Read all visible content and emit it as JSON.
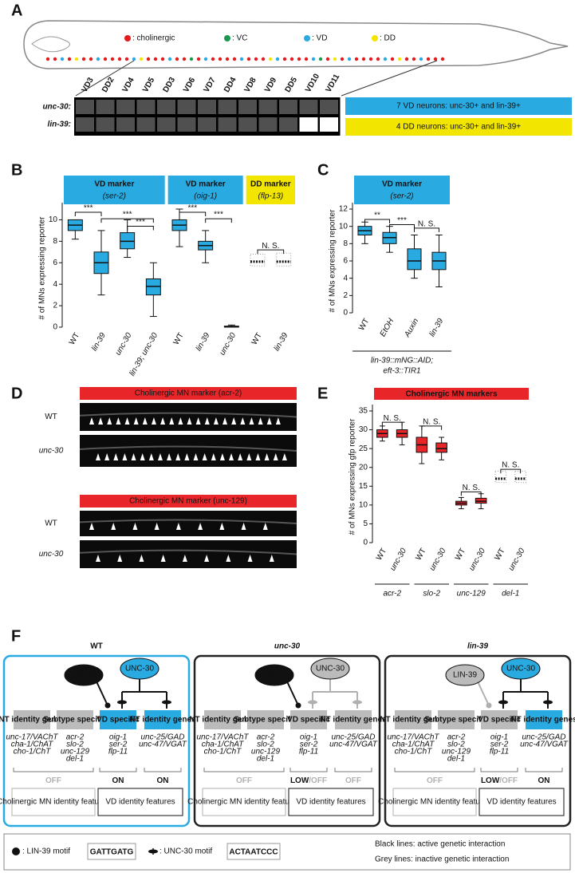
{
  "panel_a": {
    "label": "A",
    "legend": [
      {
        "text": ": cholinergic",
        "color": "#e41a1c"
      },
      {
        "text": ": VC",
        "color": "#1a9850"
      },
      {
        "text": ": VD",
        "color": "#29abe2"
      },
      {
        "text": ": DD",
        "color": "#f2e600"
      }
    ],
    "neurons": [
      {
        "name": "VD3",
        "color": "#29abe2"
      },
      {
        "name": "DD2",
        "color": "#b5a300"
      },
      {
        "name": "VD4",
        "color": "#29abe2"
      },
      {
        "name": "VD5",
        "color": "#29abe2"
      },
      {
        "name": "DD3",
        "color": "#b5a300"
      },
      {
        "name": "VD6",
        "color": "#29abe2"
      },
      {
        "name": "VD7",
        "color": "#29abe2"
      },
      {
        "name": "DD4",
        "color": "#b5a300"
      },
      {
        "name": "VD8",
        "color": "#29abe2"
      },
      {
        "name": "VD9",
        "color": "#29abe2"
      },
      {
        "name": "DD5",
        "color": "#b5a300"
      },
      {
        "name": "VD10",
        "color": "#29abe2"
      },
      {
        "name": "VD11",
        "color": "#29abe2"
      }
    ],
    "rows": [
      {
        "label": "unc-30:",
        "expressed": [
          true,
          true,
          true,
          true,
          true,
          true,
          true,
          true,
          true,
          true,
          true,
          true,
          true
        ]
      },
      {
        "label": "lin-39:",
        "expressed": [
          true,
          true,
          true,
          true,
          true,
          true,
          true,
          true,
          true,
          true,
          true,
          false,
          false
        ]
      }
    ],
    "notes": [
      {
        "text": "7 VD neurons: unc-30+ and lin-39+",
        "color": "#29abe2"
      },
      {
        "text": "4 DD neurons: unc-30+ and lin-39+",
        "color": "#f2e600"
      }
    ]
  },
  "chart_data": [
    {
      "label": "B",
      "type": "box",
      "ylabel": "# of MNs expressing reporter",
      "ylim": [
        0,
        11
      ],
      "yticks": [
        0,
        2,
        4,
        6,
        8,
        10
      ],
      "groups": [
        {
          "name": "VD marker",
          "marker": "(ser-2)",
          "color": "#29abe2"
        },
        {
          "name": "VD marker",
          "marker": "(oig-1)",
          "color": "#29abe2"
        },
        {
          "name": "DD marker",
          "marker": "(flp-13)",
          "color": "#f2e600"
        }
      ],
      "categories": [
        "WT",
        "lin-39",
        "unc-30",
        "lin-39; unc-30",
        "WT",
        "lin-39",
        "unc-30",
        "WT",
        "lin-39"
      ],
      "boxes": [
        [
          8.2,
          9,
          9.5,
          10,
          10
        ],
        [
          3,
          5,
          6,
          7,
          9
        ],
        [
          6.5,
          7.3,
          8,
          8.8,
          10
        ],
        [
          1,
          3,
          3.8,
          4.5,
          6
        ],
        [
          7.5,
          9,
          9.5,
          10,
          11
        ],
        [
          6,
          7.2,
          7.6,
          8,
          9
        ],
        [
          0,
          0,
          0.05,
          0.1,
          0.2
        ],
        [
          5.7,
          6,
          6.1,
          6.3,
          6.8
        ],
        [
          5.7,
          6,
          6.1,
          6.3,
          6.9
        ]
      ],
      "box_colors": [
        "#29abe2",
        "#29abe2",
        "#29abe2",
        "#29abe2",
        "#29abe2",
        "#29abe2",
        "#29abe2",
        null,
        null
      ],
      "annotations": [
        "***",
        "***",
        "***",
        "***",
        "***",
        "N. S."
      ]
    },
    {
      "label": "C",
      "type": "box",
      "ylabel": "# of MNs expressing reporter",
      "ylim": [
        0,
        12
      ],
      "yticks": [
        0,
        2,
        4,
        6,
        8,
        10,
        12
      ],
      "groups": [
        {
          "name": "VD marker",
          "marker": "(ser-2)",
          "color": "#29abe2"
        }
      ],
      "categories": [
        "WT",
        "EtOH",
        "Auxin",
        "lin-39"
      ],
      "boxes": [
        [
          8,
          9,
          9.5,
          10,
          10.5
        ],
        [
          7,
          8,
          8.7,
          9.3,
          10
        ],
        [
          4,
          5,
          6,
          7.4,
          9
        ],
        [
          3,
          5,
          6,
          7,
          9
        ]
      ],
      "box_colors": [
        "#29abe2",
        "#29abe2",
        "#29abe2",
        "#29abe2"
      ],
      "annotations": [
        "**",
        "***",
        "N. S."
      ],
      "strain": [
        "lin-39::mNG::AID;",
        "eft-3::TIR1"
      ]
    },
    {
      "label": "E",
      "type": "box",
      "ylabel": "# of MNs expressing gfp reporter",
      "ylim": [
        0,
        35
      ],
      "yticks": [
        0,
        5,
        10,
        15,
        20,
        25,
        30,
        35
      ],
      "groups": [
        {
          "name": "Cholinergic MN markers",
          "marker": "",
          "color": "#e8262a"
        }
      ],
      "categories": [
        "WT",
        "unc-30",
        "WT",
        "unc-30",
        "WT",
        "unc-30",
        "WT",
        "unc-30"
      ],
      "genes": [
        "acr-2",
        "slo-2",
        "unc-129",
        "del-1"
      ],
      "boxes": [
        [
          27,
          28,
          29,
          30,
          31
        ],
        [
          26,
          28,
          29,
          30,
          32
        ],
        [
          21,
          24,
          26,
          28,
          31
        ],
        [
          22,
          24,
          25,
          26.5,
          28
        ],
        [
          9,
          10,
          10.5,
          11,
          12
        ],
        [
          9,
          10.5,
          11,
          11.8,
          13
        ],
        [
          16,
          16.5,
          17,
          17.5,
          19
        ],
        [
          16,
          16.5,
          17,
          17.5,
          19
        ]
      ],
      "box_colors": [
        "#e8262a",
        "#e8262a",
        "#e8262a",
        "#e8262a",
        "#e8262a",
        "#e8262a",
        null,
        null
      ],
      "annotations": [
        "N. S.",
        "N. S.",
        "N. S.",
        "N. S."
      ]
    }
  ],
  "panel_d": {
    "label": "D",
    "blocks": [
      {
        "title": "Cholinergic MN marker (acr-2)",
        "rows": [
          "WT",
          "unc-30"
        ]
      },
      {
        "title": "Cholinergic MN marker (unc-129)",
        "rows": [
          "WT",
          "unc-30"
        ]
      }
    ]
  },
  "panel_f": {
    "label": "F",
    "lin39": "LIN-39",
    "unc30": "UNC-30",
    "boxes": [
      "NT identity genes",
      "Subtype specific",
      "VD specific",
      "NT identity genes"
    ],
    "genes": [
      [
        "unc-17/VAChT",
        "cha-1/ChAT",
        "cho-1/ChT"
      ],
      [
        "acr-2",
        "slo-2",
        "unc-129",
        "del-1"
      ],
      [
        "oig-1",
        "ser-2",
        "flp-11"
      ],
      [
        "unc-25/GAD",
        "unc-47/VGAT"
      ]
    ],
    "features": [
      "Cholinergic MN identity features",
      "VD identity features"
    ],
    "columns": [
      {
        "title": "WT",
        "border": "#29abe2",
        "lin39_active": true,
        "unc30_active": true,
        "vd_active": true,
        "nt_active": true,
        "states": [
          [
            {
              "text": "OFF",
              "active": false
            }
          ],
          [
            {
              "text": "ON",
              "active": true
            }
          ],
          [
            {
              "text": "ON",
              "active": true
            }
          ]
        ]
      },
      {
        "title": "unc-30",
        "border": "#222",
        "lin39_active": true,
        "unc30_active": false,
        "vd_active": false,
        "nt_active": false,
        "states": [
          [
            {
              "text": "OFF",
              "active": false
            }
          ],
          [
            {
              "text": "LOW",
              "active": true
            },
            {
              "text": "/OFF",
              "active": false
            }
          ],
          [
            {
              "text": "OFF",
              "active": false
            }
          ]
        ]
      },
      {
        "title": "lin-39",
        "border": "#222",
        "lin39_active": false,
        "unc30_active": true,
        "vd_active": false,
        "nt_active": true,
        "states": [
          [
            {
              "text": "OFF",
              "active": false
            }
          ],
          [
            {
              "text": "LOW",
              "active": true
            },
            {
              "text": "/OFF",
              "active": false
            }
          ],
          [
            {
              "text": "ON",
              "active": true
            }
          ]
        ]
      }
    ],
    "legend": {
      "lin39": ": LIN-39 motif",
      "lin39_logo": "GATTGATG",
      "unc30": ": UNC-30 motif",
      "unc30_logo": "ACTAATCCC",
      "active": "Black lines: active genetic interaction",
      "inactive": "Grey lines: inactive genetic interaction"
    }
  }
}
